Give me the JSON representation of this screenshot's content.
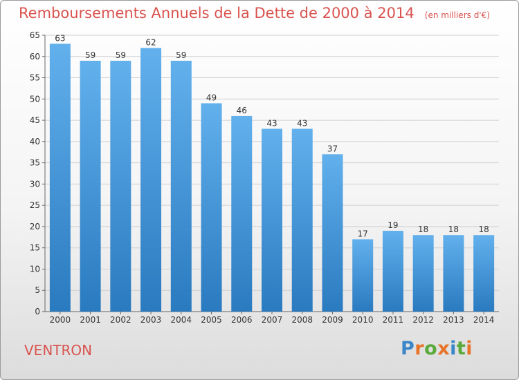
{
  "title": "Remboursements Annuels de la Dette de 2000 à 2014",
  "subtitle": "(en milliers d'€)",
  "place": "VENTRON",
  "logo": {
    "text": "Proxiti",
    "colors": [
      "#3a86c8",
      "#e8742a",
      "#5aaa3a",
      "#e8742a",
      "#3a86c8",
      "#5aaa3a",
      "#e8742a"
    ]
  },
  "colors": {
    "bar_top": "#62b0ec",
    "bar_bottom": "#2a7ac0",
    "accent": "#d9534f"
  },
  "chart_data": {
    "type": "bar",
    "title": "Remboursements Annuels de la Dette de 2000 à 2014",
    "categories": [
      "2000",
      "2001",
      "2002",
      "2003",
      "2004",
      "2005",
      "2006",
      "2007",
      "2008",
      "2009",
      "2010",
      "2011",
      "2012",
      "2013",
      "2014"
    ],
    "values": [
      63,
      59,
      59,
      62,
      59,
      49,
      46,
      43,
      43,
      37,
      17,
      19,
      18,
      18,
      18
    ],
    "ylim": [
      0,
      65
    ],
    "yticks": [
      0,
      5,
      10,
      15,
      20,
      25,
      30,
      35,
      40,
      45,
      50,
      55,
      60,
      65
    ],
    "grid": true,
    "xlabel": "",
    "ylabel": ""
  }
}
